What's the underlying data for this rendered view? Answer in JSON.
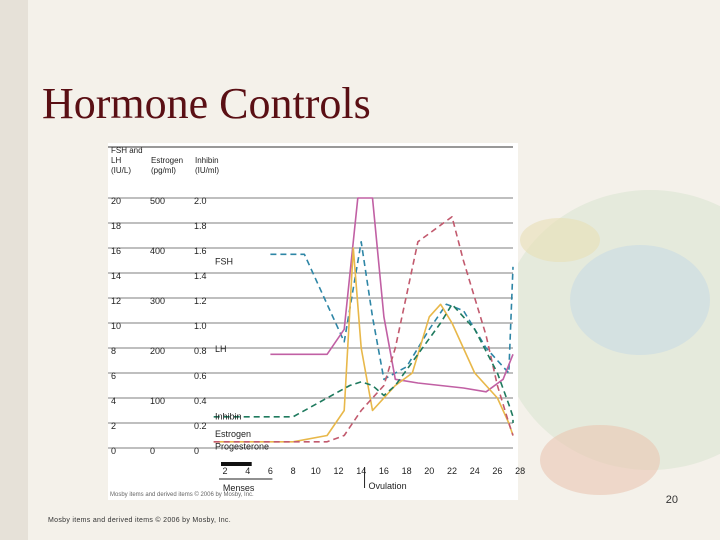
{
  "slide": {
    "title": "Hormone Controls",
    "page_number": "20",
    "footer": "Mosby items and derived items © 2006 by Mosby, Inc.",
    "chart_credit": "Mosby items and derived items © 2006 by Mosby, Inc."
  },
  "colors": {
    "title": "#5a0f14",
    "background": "#f4f1ea",
    "fsh": "#2e86a6",
    "lh": "#c160a4",
    "estrogen": "#e8b84a",
    "inhibin": "#1f7a5e",
    "progesterone": "#c25a6e"
  },
  "chart_data": {
    "type": "line",
    "axis_headers": {
      "fsh_lh": [
        "FSH and",
        "LH",
        "(IU/L)"
      ],
      "estrogen": [
        "Estrogen",
        "(pg/ml)"
      ],
      "inhibin": [
        "Inhibin",
        "(IU/ml)"
      ]
    },
    "y_ticks": {
      "fsh_lh": [
        "0",
        "2",
        "4",
        "6",
        "8",
        "10",
        "12",
        "14",
        "16",
        "18",
        "20"
      ],
      "estrogen": [
        "0",
        "",
        "100",
        "",
        "200",
        "",
        "300",
        "",
        "400",
        "",
        "500"
      ],
      "inhibin": [
        "0",
        "0.2",
        "0.4",
        "0.6",
        "0.8",
        "1.0",
        "1.2",
        "1.4",
        "1.6",
        "1.8",
        "2.0"
      ]
    },
    "ylim": [
      0,
      20
    ],
    "xlim": [
      1,
      29
    ],
    "x_ticks": [
      "2",
      "4",
      "6",
      "8",
      "10",
      "12",
      "14",
      "16",
      "18",
      "20",
      "22",
      "24",
      "26",
      "28"
    ],
    "grid": true,
    "annotations": {
      "menses": "Menses",
      "ovulation": "Ovulation"
    },
    "series": [
      {
        "name": "FSH",
        "color": "#2e86a6",
        "dash": "dashed",
        "x": [
          6,
          9,
          12.5,
          14,
          15,
          16,
          18,
          20,
          21.5,
          23,
          25,
          27,
          28
        ],
        "y": [
          15.5,
          15.5,
          8.5,
          16.5,
          10.5,
          5.5,
          6.5,
          9.5,
          11.5,
          11,
          8,
          6,
          14.5
        ]
      },
      {
        "name": "LH",
        "color": "#c160a4",
        "dash": "solid",
        "x": [
          6,
          11,
          12.5,
          13.7,
          14,
          15,
          16,
          17,
          19,
          21,
          23,
          25,
          26.5,
          28
        ],
        "y": [
          7.5,
          7.5,
          9.5,
          20,
          20,
          20,
          10.5,
          5.5,
          5.2,
          5,
          4.8,
          4.5,
          5.5,
          7.5
        ]
      },
      {
        "name": "Estrogen",
        "color": "#e8b84a",
        "dash": "solid",
        "x": [
          1,
          6,
          8,
          11,
          12.5,
          13.3,
          14,
          15,
          16,
          17,
          18.5,
          20,
          21,
          22,
          24,
          26,
          27,
          28,
          29
        ],
        "y": [
          0.5,
          0.5,
          0.5,
          1,
          3,
          16,
          8,
          3,
          4,
          5,
          6,
          10.5,
          11.5,
          10,
          6,
          4,
          2,
          1,
          1
        ]
      },
      {
        "name": "Progesterone",
        "color": "#c25a6e",
        "dash": "dashed",
        "x": [
          1,
          8,
          11,
          12.5,
          14,
          15,
          16,
          17,
          19,
          22,
          23,
          25,
          26,
          27,
          28,
          29
        ],
        "y": [
          0.5,
          0.5,
          0.5,
          1,
          3,
          4,
          5,
          8,
          16.5,
          18.5,
          15,
          9,
          5,
          2,
          1,
          1
        ]
      },
      {
        "name": "Inhibin",
        "color": "#1f7a5e",
        "dash": "dashed",
        "x": [
          1,
          8,
          11,
          13,
          14,
          15,
          16,
          17,
          19,
          21,
          22,
          24,
          26,
          27,
          28,
          29
        ],
        "y": [
          2.5,
          2.5,
          4,
          5,
          5.3,
          5,
          4.2,
          5,
          7.5,
          10,
          11.5,
          9.5,
          6,
          3.5,
          2.5,
          2
        ]
      }
    ],
    "series_labels": {
      "fsh": "FSH",
      "lh": "LH",
      "inhibin": "Inhibin",
      "estrogen": "Estrogen",
      "progesterone": "Progesterone"
    }
  }
}
